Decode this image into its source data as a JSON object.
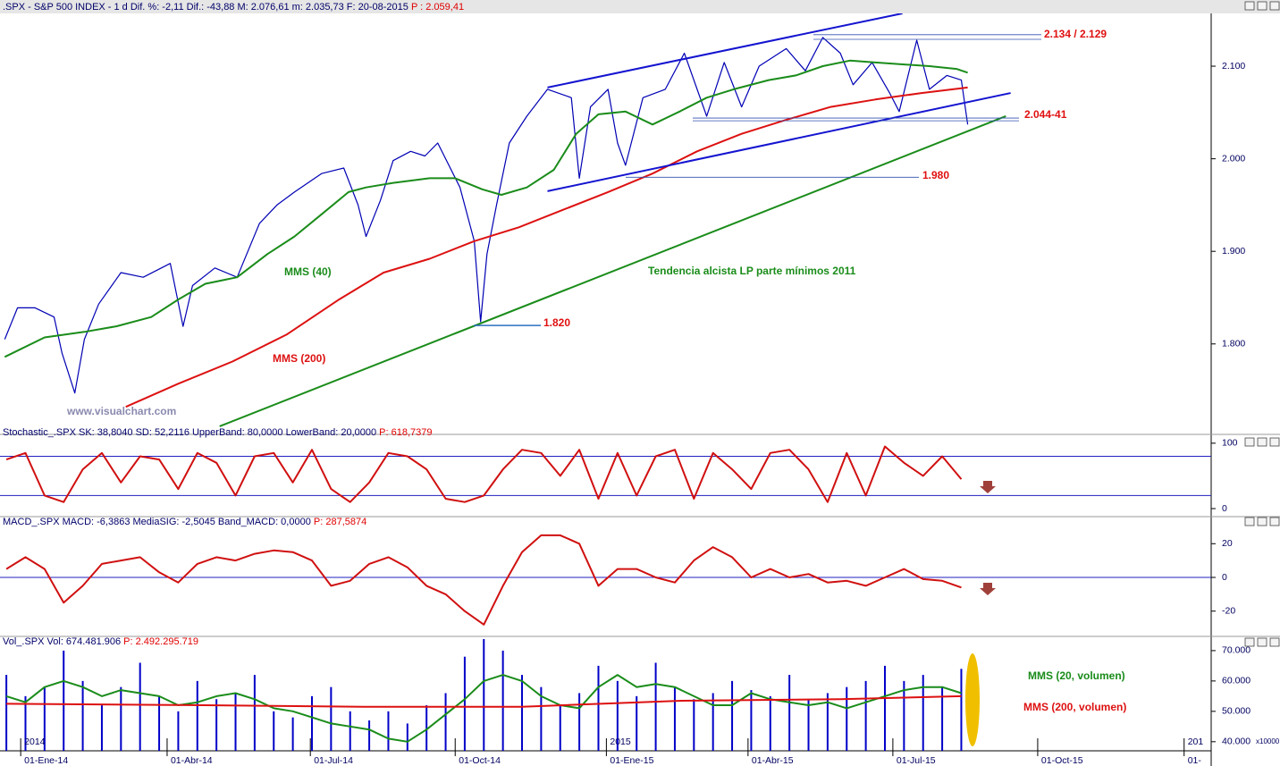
{
  "chart_data": [
    {
      "type": "line",
      "title": ".SPX - S&P 500 INDEX - 1 d Dif. %: -2,11 Dif.: -43,88 M: 2.076,61 m: 2.035,73 F: 20-08-2015",
      "title_p": "P : 2.059,41",
      "xlim": [
        -28,
        733
      ],
      "ylim": [
        1710,
        2157
      ],
      "yticks": [
        {
          "value": 1800,
          "label": "1.800"
        },
        {
          "value": 1900,
          "label": "1.900"
        },
        {
          "value": 2000,
          "label": "2.000"
        },
        {
          "value": 2100,
          "label": "2.100"
        }
      ],
      "series": [
        {
          "color": "#0000b4",
          "x": [
            -25,
            -17,
            -6,
            6,
            11,
            19,
            25,
            34,
            48,
            62,
            79,
            87,
            93,
            107,
            121,
            135,
            146,
            157,
            174,
            188,
            197,
            202,
            211,
            219,
            230,
            239,
            247,
            261,
            270,
            274,
            278,
            284,
            292,
            303,
            316,
            331,
            336,
            343,
            354,
            360,
            365,
            376,
            390,
            402,
            416,
            427,
            438,
            449,
            466,
            478,
            489,
            500,
            508,
            520,
            531,
            537,
            548,
            556,
            567,
            576,
            580
          ],
          "values": [
            1805,
            1839,
            1839,
            1829,
            1790,
            1747,
            1805,
            1843,
            1877,
            1872,
            1887,
            1819,
            1863,
            1882,
            1872,
            1930,
            1950,
            1964,
            1984,
            1990,
            1950,
            1916,
            1955,
            1998,
            2008,
            2003,
            2017,
            1969,
            1911,
            1824,
            1897,
            1950,
            2017,
            2046,
            2075,
            2066,
            1979,
            2056,
            2075,
            2017,
            1993,
            2066,
            2075,
            2114,
            2046,
            2104,
            2056,
            2100,
            2119,
            2095,
            2131,
            2114,
            2080,
            2104,
            2071,
            2051,
            2128,
            2075,
            2090,
            2085,
            2037
          ]
        },
        {
          "name": "MMS (40)",
          "color": "#1a8c1a",
          "x": [
            -25,
            0,
            25,
            45,
            67,
            84,
            101,
            121,
            140,
            157,
            174,
            191,
            202,
            219,
            242,
            258,
            275,
            287,
            303,
            320,
            334,
            348,
            365,
            382,
            399,
            416,
            433,
            455,
            472,
            489,
            506,
            522,
            539,
            556,
            573,
            580
          ],
          "values": [
            1786,
            1807,
            1813,
            1819,
            1829,
            1848,
            1865,
            1872,
            1897,
            1916,
            1940,
            1964,
            1969,
            1974,
            1979,
            1979,
            1967,
            1961,
            1969,
            1988,
            2027,
            2048,
            2051,
            2037,
            2051,
            2066,
            2075,
            2085,
            2090,
            2100,
            2106,
            2104,
            2102,
            2100,
            2097,
            2093
          ]
        },
        {
          "name": "MMS (200)",
          "color": "#dd1111",
          "x": [
            51,
            84,
            118,
            152,
            185,
            213,
            242,
            270,
            298,
            326,
            354,
            382,
            410,
            438,
            466,
            494,
            522,
            551,
            580
          ],
          "values": [
            1732,
            1757,
            1781,
            1810,
            1848,
            1877,
            1892,
            1911,
            1926,
            1945,
            1964,
            1984,
            2008,
            2027,
            2042,
            2056,
            2064,
            2071,
            2077
          ]
        }
      ],
      "trendlines": [
        {
          "color": "#1414d0",
          "x": [
            316,
            539
          ],
          "values": [
            2077,
            2157
          ]
        },
        {
          "color": "#1414d0",
          "x": [
            316,
            607
          ],
          "values": [
            1965,
            2071
          ]
        },
        {
          "color": "#1a8c1a",
          "x": [
            110,
            604
          ],
          "values": [
            1711,
            2046
          ]
        }
      ],
      "levels": [
        2134,
        2129,
        2044,
        2041,
        1980,
        1820
      ],
      "level_labels": [
        "2.134 / 2.129",
        "2.044-41",
        "1.980",
        "1.820"
      ],
      "annotations": [
        "Tendencia alcista LP parte mínimos 2011",
        "www.visualchart.com"
      ]
    },
    {
      "type": "line",
      "title": "Stochastic_.SPX SK: 38,8040 SD: 52,2116 UpperBand: 80,0000 LowerBand: 20,0000",
      "title_p": "P: 618,7379",
      "xlim": [
        -28,
        733
      ],
      "ylim": [
        -15,
        108
      ],
      "yticks": [
        0,
        100
      ],
      "bands": [
        80,
        20
      ],
      "series": [
        {
          "color": "#d01010",
          "x": [
            -24,
            -12,
            0,
            12,
            24,
            36,
            48,
            60,
            72,
            84,
            96,
            108,
            120,
            132,
            144,
            156,
            168,
            180,
            192,
            204,
            216,
            228,
            240,
            252,
            264,
            276,
            288,
            300,
            312,
            324,
            336,
            348,
            360,
            372,
            384,
            396,
            408,
            420,
            432,
            444,
            456,
            468,
            480,
            492,
            504,
            516,
            528,
            540,
            552,
            564,
            576
          ],
          "values": [
            75,
            85,
            20,
            10,
            60,
            85,
            40,
            80,
            75,
            30,
            85,
            70,
            20,
            80,
            85,
            40,
            90,
            30,
            10,
            40,
            85,
            80,
            60,
            15,
            10,
            20,
            60,
            90,
            85,
            50,
            90,
            15,
            85,
            20,
            80,
            90,
            15,
            85,
            60,
            30,
            85,
            90,
            60,
            10,
            85,
            20,
            95,
            70,
            50,
            80,
            45
          ]
        }
      ]
    },
    {
      "type": "line",
      "title": "MACD_.SPX MACD: -6,3863 MediaSIG: -2,5045 Band_MACD: 0,0000",
      "title_p": "P: 287,5874",
      "xlim": [
        -28,
        733
      ],
      "ylim": [
        -35,
        35
      ],
      "yticks": [
        -20,
        0,
        20
      ],
      "series": [
        {
          "color": "#d01010",
          "x": [
            -24,
            -12,
            0,
            12,
            24,
            36,
            48,
            60,
            72,
            84,
            96,
            108,
            120,
            132,
            144,
            156,
            168,
            180,
            192,
            204,
            216,
            228,
            240,
            252,
            264,
            276,
            288,
            300,
            312,
            324,
            336,
            348,
            360,
            372,
            384,
            396,
            408,
            420,
            432,
            444,
            456,
            468,
            480,
            492,
            504,
            516,
            528,
            540,
            552,
            564,
            576
          ],
          "values": [
            5,
            12,
            5,
            -15,
            -5,
            8,
            10,
            12,
            3,
            -3,
            8,
            12,
            10,
            14,
            16,
            15,
            10,
            -5,
            -2,
            8,
            12,
            6,
            -5,
            -10,
            -20,
            -28,
            -5,
            15,
            25,
            25,
            20,
            -5,
            5,
            5,
            0,
            -3,
            10,
            18,
            12,
            0,
            5,
            0,
            2,
            -3,
            -2,
            -5,
            0,
            5,
            -1,
            -2,
            -6
          ]
        }
      ]
    },
    {
      "type": "bar",
      "title": "Vol_.SPX Vol: 674.481.906",
      "title_p": "P: 2.492.295.719",
      "xlim": [
        -28,
        733
      ],
      "ylim": [
        37000,
        73800
      ],
      "yticks": [
        {
          "value": 40000,
          "label": "40.000"
        },
        {
          "value": 50000,
          "label": "50.000"
        },
        {
          "value": 60000,
          "label": "60.000"
        },
        {
          "value": 70000,
          "label": "70.000"
        }
      ],
      "unit_label": "x10000",
      "xticks": [
        {
          "value": -15,
          "label": "01-Ene-14"
        },
        {
          "value": 77,
          "label": "01-Abr-14"
        },
        {
          "value": 167,
          "label": "01-Jul-14"
        },
        {
          "value": 258,
          "label": "01-Oct-14"
        },
        {
          "value": 353,
          "label": "01-Ene-15"
        },
        {
          "value": 442,
          "label": "01-Abr-15"
        },
        {
          "value": 533,
          "label": "01-Jul-15"
        },
        {
          "value": 624,
          "label": "01-Oct-15"
        },
        {
          "value": 716,
          "label": "01-"
        }
      ],
      "year_labels": [
        {
          "value": -15,
          "label": "2014"
        },
        {
          "value": 353,
          "label": "2015"
        },
        {
          "value": 716,
          "label": "201"
        }
      ],
      "color": "#0000c8",
      "x": [
        -24,
        -12,
        0,
        12,
        24,
        36,
        48,
        60,
        72,
        84,
        96,
        108,
        120,
        132,
        144,
        156,
        168,
        180,
        192,
        204,
        216,
        228,
        240,
        252,
        264,
        276,
        288,
        300,
        312,
        324,
        336,
        348,
        360,
        372,
        384,
        396,
        408,
        420,
        432,
        444,
        456,
        468,
        480,
        492,
        504,
        516,
        528,
        540,
        552,
        564,
        576
      ],
      "values": [
        62000,
        55000,
        58000,
        70000,
        60000,
        52000,
        58000,
        66000,
        55000,
        50000,
        60000,
        54000,
        56000,
        62000,
        50000,
        48000,
        55000,
        58000,
        50000,
        47000,
        50000,
        46000,
        52000,
        56000,
        68000,
        75000,
        70000,
        62000,
        58000,
        52000,
        56000,
        65000,
        60000,
        55000,
        66000,
        58000,
        54000,
        56000,
        60000,
        57000,
        55000,
        62000,
        54000,
        56000,
        58000,
        60000,
        65000,
        60000,
        62000,
        58000,
        64000
      ],
      "series": [
        {
          "name": "MMS (20, volumen)",
          "color": "#1a8c1a",
          "x": [
            -24,
            -12,
            0,
            12,
            24,
            36,
            48,
            60,
            72,
            84,
            96,
            108,
            120,
            132,
            144,
            156,
            168,
            180,
            192,
            204,
            216,
            228,
            240,
            252,
            264,
            276,
            288,
            300,
            312,
            324,
            336,
            348,
            360,
            372,
            384,
            396,
            408,
            420,
            432,
            444,
            456,
            468,
            480,
            492,
            504,
            516,
            528,
            540,
            552,
            564,
            576
          ],
          "values": [
            55000,
            53000,
            58000,
            60000,
            58000,
            55000,
            57000,
            56000,
            55000,
            52000,
            53000,
            55000,
            56000,
            54000,
            51000,
            50000,
            48000,
            46000,
            45000,
            44000,
            41000,
            40000,
            44000,
            49000,
            54000,
            60000,
            62000,
            60000,
            55000,
            52000,
            51000,
            58000,
            62000,
            58000,
            59000,
            58000,
            55000,
            52000,
            52000,
            56000,
            54000,
            53000,
            52000,
            53000,
            51000,
            53000,
            55000,
            57000,
            58000,
            58000,
            56000
          ]
        },
        {
          "name": "MMS (200, volumen)",
          "color": "#dd1111",
          "x": [
            -24,
            100,
            200,
            300,
            400,
            500,
            576
          ],
          "values": [
            52500,
            52000,
            51500,
            51500,
            53500,
            54000,
            55000
          ]
        }
      ]
    }
  ]
}
